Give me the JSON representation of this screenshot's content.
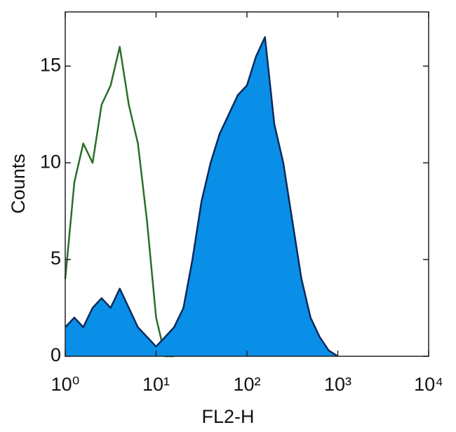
{
  "chart_data": {
    "type": "histogram-overlay",
    "xlabel": "FL2-H",
    "ylabel": "Counts",
    "xscale": "log",
    "xlim": [
      1,
      10000
    ],
    "ylim": [
      0,
      17.8
    ],
    "xticks": [
      {
        "value": 1,
        "label": "10⁰"
      },
      {
        "value": 10,
        "label": "10¹"
      },
      {
        "value": 100,
        "label": "10²"
      },
      {
        "value": 1000,
        "label": "10³"
      },
      {
        "value": 10000,
        "label": "10⁴"
      }
    ],
    "yticks": [
      0,
      5,
      10,
      15
    ],
    "x": [
      1,
      1.26,
      1.58,
      2,
      2.51,
      3.16,
      3.98,
      5.01,
      6.31,
      7.94,
      10,
      12.6,
      15.8,
      20,
      25.1,
      31.6,
      39.8,
      50.1,
      63.1,
      79.4,
      100,
      126,
      158,
      200,
      251,
      316,
      398,
      501,
      631,
      794,
      1000
    ],
    "series": [
      {
        "color": "#2a6e2a",
        "fill": false,
        "values": [
          4,
          9,
          11,
          10,
          13,
          14,
          16,
          13,
          11,
          7,
          2,
          0,
          0,
          null,
          null,
          null,
          null,
          null,
          null,
          null,
          null,
          null,
          null,
          null,
          null,
          null,
          null,
          null,
          null,
          null,
          null
        ]
      },
      {
        "color": "#0a2a5c",
        "fill": "#0a8fe8",
        "values": [
          1.5,
          2,
          1.5,
          2.5,
          3,
          2.5,
          3.5,
          2.5,
          1.5,
          1,
          0.5,
          1,
          1.5,
          2.5,
          5,
          8,
          10,
          11.5,
          12.5,
          13.5,
          14,
          15.5,
          16.5,
          12,
          10,
          7,
          4,
          2,
          1,
          0.3,
          0
        ]
      }
    ]
  }
}
